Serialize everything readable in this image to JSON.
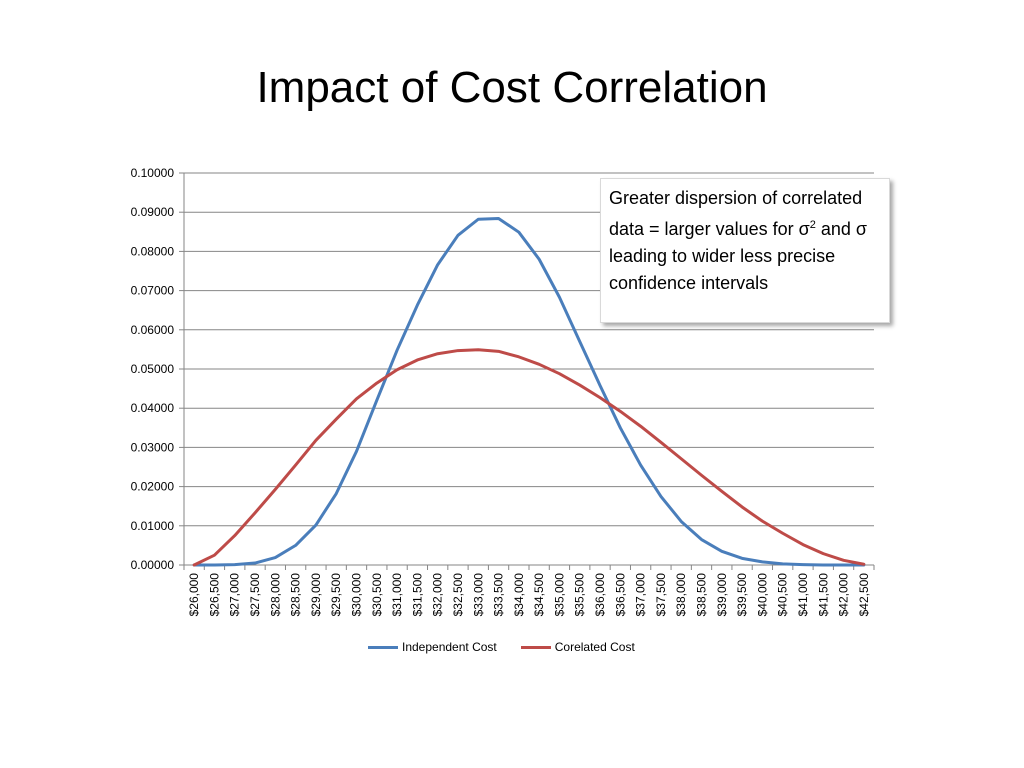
{
  "slide": {
    "title": "Impact of Cost Correlation"
  },
  "callout": {
    "line1": "Greater dispersion of correlated data = larger values for σ",
    "sup": "2",
    "line2": " and σ leading to wider less precise confidence intervals"
  },
  "chart_data": {
    "type": "line",
    "title": "",
    "xlabel": "",
    "ylabel": "",
    "ylim": [
      0,
      0.1
    ],
    "yticks": [
      "0.00000",
      "0.01000",
      "0.02000",
      "0.03000",
      "0.04000",
      "0.05000",
      "0.06000",
      "0.07000",
      "0.08000",
      "0.09000",
      "0.10000"
    ],
    "categories": [
      "$26,000",
      "$26,500",
      "$27,000",
      "$27,500",
      "$28,000",
      "$28,500",
      "$29,000",
      "$29,500",
      "$30,000",
      "$30,500",
      "$31,000",
      "$31,500",
      "$32,000",
      "$32,500",
      "$33,000",
      "$33,500",
      "$34,000",
      "$34,500",
      "$35,000",
      "$35,500",
      "$36,000",
      "$36,500",
      "$37,000",
      "$37,500",
      "$38,000",
      "$38,500",
      "$39,000",
      "$39,500",
      "$40,000",
      "$40,500",
      "$41,000",
      "$41,500",
      "$42,000",
      "$42,500"
    ],
    "grid": true,
    "legend_position": "bottom",
    "series": [
      {
        "name": "Independent Cost",
        "color": "#4a7ebb",
        "values": [
          0.0,
          0.0,
          0.0001,
          0.0005,
          0.0019,
          0.005,
          0.0102,
          0.0182,
          0.029,
          0.042,
          0.0548,
          0.0663,
          0.0766,
          0.0841,
          0.0882,
          0.0884,
          0.0849,
          0.078,
          0.0683,
          0.057,
          0.0458,
          0.035,
          0.0255,
          0.0175,
          0.0111,
          0.0065,
          0.0035,
          0.0017,
          0.0008,
          0.0003,
          0.0001,
          0.0,
          0.0,
          0.0
        ]
      },
      {
        "name": "Corelated Cost",
        "color": "#be4b48",
        "values": [
          0.0,
          0.0025,
          0.0075,
          0.0133,
          0.0193,
          0.0255,
          0.0318,
          0.0372,
          0.0424,
          0.0464,
          0.0498,
          0.0523,
          0.0539,
          0.0547,
          0.0549,
          0.0545,
          0.0531,
          0.0512,
          0.0488,
          0.0459,
          0.0427,
          0.0392,
          0.0354,
          0.0313,
          0.0271,
          0.0229,
          0.0188,
          0.0148,
          0.0112,
          0.0081,
          0.0052,
          0.0029,
          0.0012,
          0.0002
        ]
      }
    ]
  }
}
